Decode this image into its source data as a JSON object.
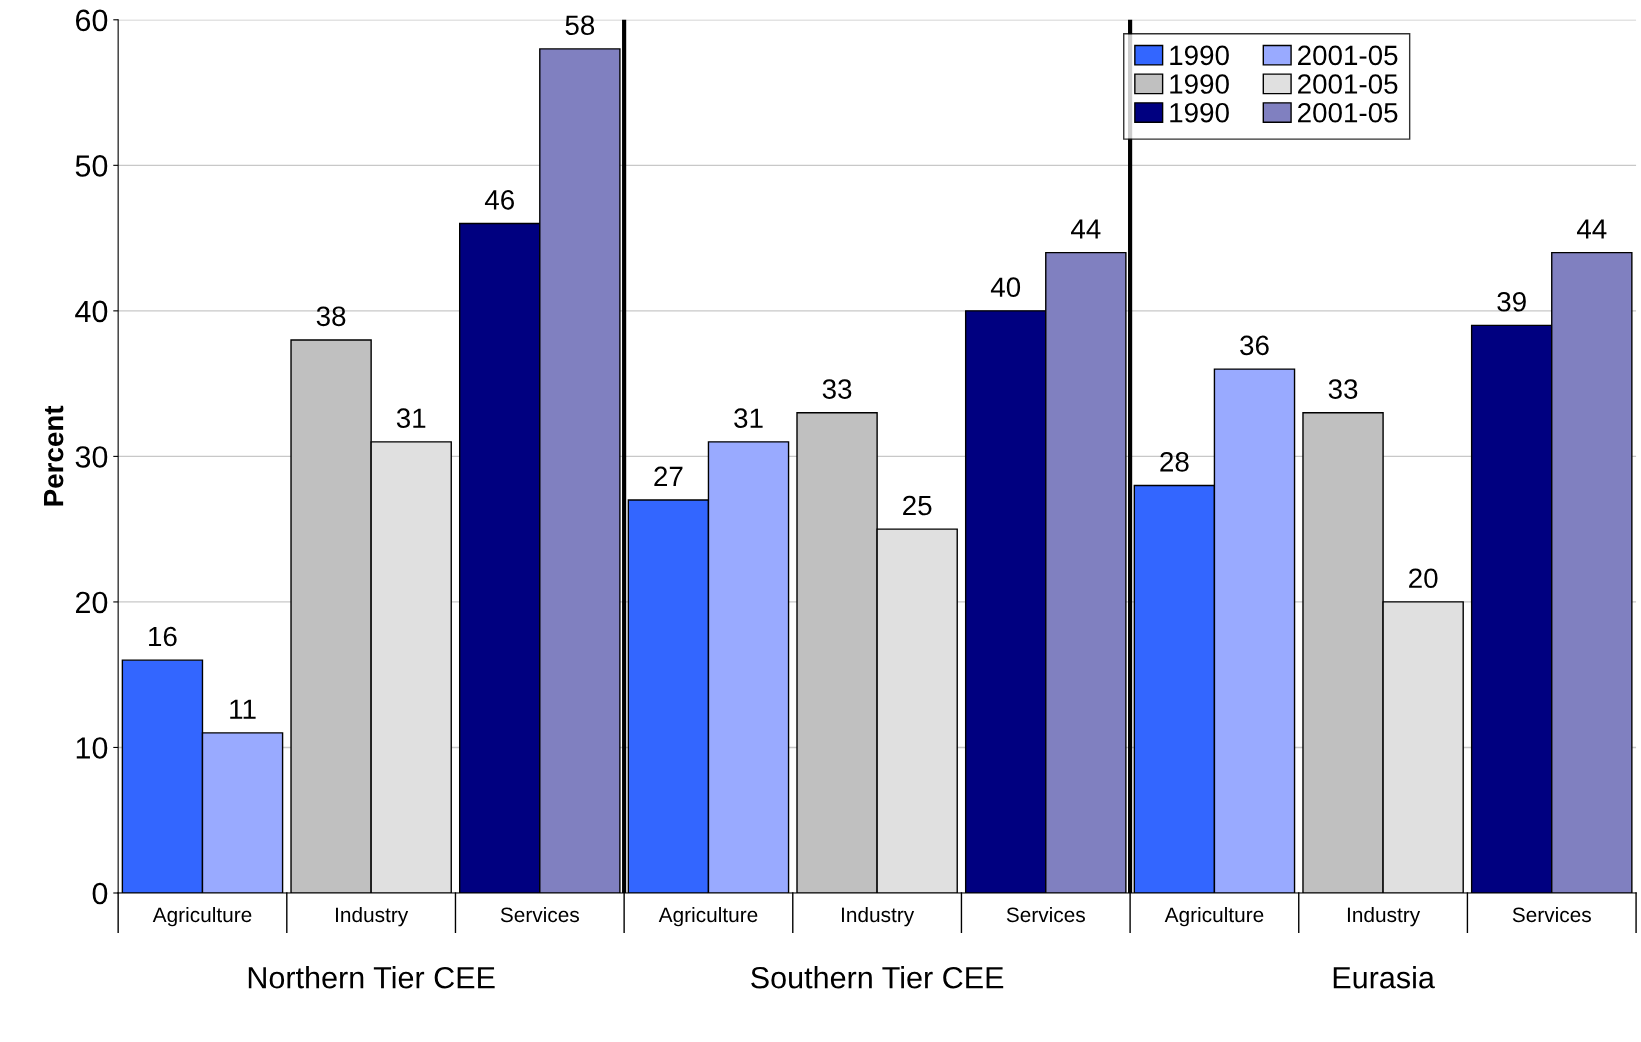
{
  "chart_data": {
    "type": "bar",
    "ylabel": "Percent",
    "categories": [
      "Agriculture",
      "Industry",
      "Services",
      "Agriculture",
      "Industry",
      "Services",
      "Agriculture",
      "Industry",
      "Services"
    ],
    "series": [
      {
        "name": "1990",
        "color": "#3366ff",
        "values": [
          16,
          null,
          null,
          27,
          null,
          null,
          28,
          null,
          null
        ]
      },
      {
        "name": "2001-05",
        "color": "#99aaff",
        "values": [
          11,
          null,
          null,
          31,
          null,
          null,
          36,
          null,
          null
        ]
      },
      {
        "name": "1990",
        "color": "#c0c0c0",
        "values": [
          null,
          38,
          null,
          null,
          33,
          null,
          null,
          33,
          null
        ]
      },
      {
        "name": "2001-05",
        "color": "#e0e0e0",
        "values": [
          null,
          31,
          null,
          null,
          25,
          null,
          null,
          20,
          null
        ]
      },
      {
        "name": "1990",
        "color": "#000080",
        "values": [
          null,
          null,
          46,
          null,
          null,
          40,
          null,
          null,
          39
        ]
      },
      {
        "name": "2001-05",
        "color": "#8080c0",
        "values": [
          null,
          null,
          58,
          null,
          null,
          44,
          null,
          null,
          44
        ]
      }
    ],
    "ylim": [
      0,
      60
    ],
    "yticks": [
      0,
      10,
      20,
      30,
      40,
      50,
      60
    ],
    "grid": "y",
    "data_labels": true,
    "legend": "top right",
    "annotations": [
      "Northern Tier CEE",
      "Southern Tier CEE",
      "Eurasia"
    ]
  }
}
